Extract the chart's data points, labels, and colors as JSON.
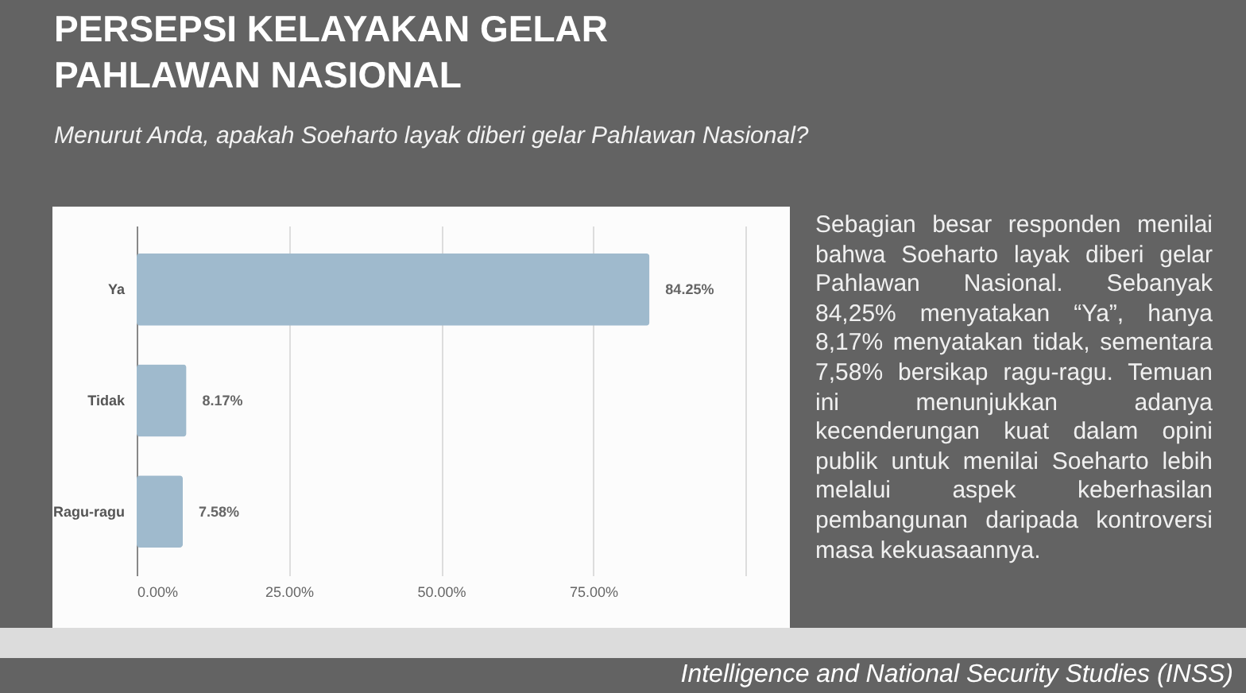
{
  "chart_data": {
    "type": "bar",
    "orientation": "horizontal",
    "title": "PERSEPSI KELAYAKAN GELAR PAHLAWAN NASIONAL",
    "subtitle": "Menurut Anda, apakah Soeharto layak diberi gelar Pahlawan Nasional?",
    "categories": [
      "Ya",
      "Tidak",
      "Ragu-ragu"
    ],
    "values": [
      84.25,
      8.17,
      7.58
    ],
    "value_labels": [
      "84.25%",
      "8.17%",
      "7.58%"
    ],
    "color": "#9fbacd",
    "xlim": [
      0,
      100
    ],
    "xticks": [
      {
        "value": 0,
        "label": "0.00%"
      },
      {
        "value": 25,
        "label": "25.00%"
      },
      {
        "value": 50,
        "label": "50.00%"
      },
      {
        "value": 75,
        "label": "75.00%"
      },
      {
        "value": 100,
        "label": null
      }
    ],
    "grid": "x",
    "annotations": [
      "Sebagian besar responden menilai bahwa Soeharto layak diberi gelar Pahlawan Nasional. Sebanyak 84,25% menyatakan “Ya”, hanya 8,17% menyatakan tidak, sementara 7,58% bersikap ragu-ragu. Temuan ini menunjukkan adanya kecenderungan kuat dalam opini publik untuk menilai Soeharto lebih melalui aspek keberhasilan pembangunan daripada kontroversi masa kekuasaannya.",
      "Intelligence and National Security Studies (INSS)"
    ]
  }
}
